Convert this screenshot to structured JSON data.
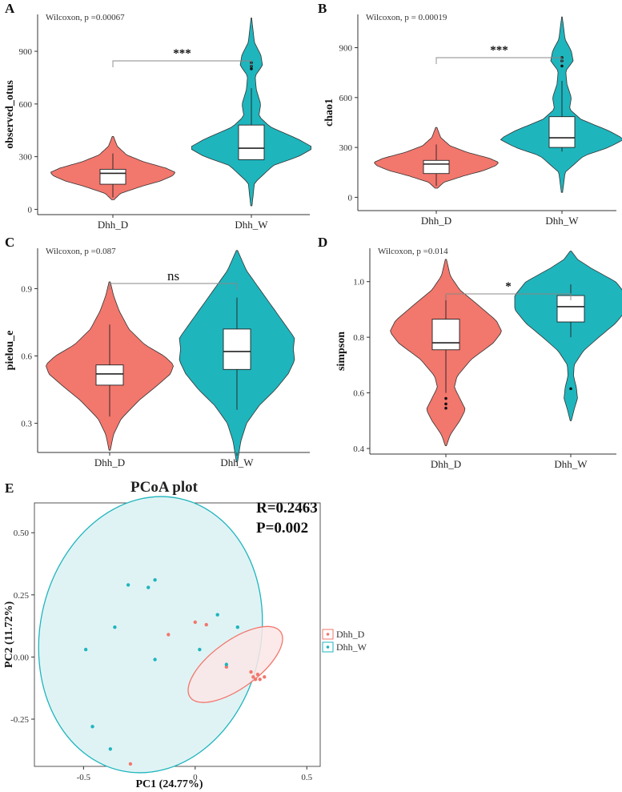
{
  "colors": {
    "Dhh_D": "#f2776d",
    "Dhh_W": "#1fb5bd",
    "ellipse_D_fill": "#fbe6e6",
    "ellipse_W_fill": "#dff3f5"
  },
  "chart_data": [
    {
      "panel": "A",
      "type": "violin",
      "ylabel": "observed_otus",
      "ylim": [
        -30,
        1110
      ],
      "yticks": [
        0,
        300,
        600,
        900
      ],
      "stat_text": "Wilcoxon, p =0.00067",
      "significance": "***",
      "categories": [
        "Dhh_D",
        "Dhh_W"
      ],
      "groups": [
        {
          "name": "Dhh_D",
          "color_key": "Dhh_D",
          "violin_range": [
            55,
            415
          ],
          "density": [
            [
              55,
              0.02
            ],
            [
              90,
              0.12
            ],
            [
              130,
              0.45
            ],
            [
              160,
              0.75
            ],
            [
              190,
              0.95
            ],
            [
              210,
              1.0
            ],
            [
              235,
              0.85
            ],
            [
              270,
              0.5
            ],
            [
              310,
              0.22
            ],
            [
              360,
              0.07
            ],
            [
              415,
              0.01
            ]
          ],
          "box": {
            "q1": 143,
            "median": 205,
            "q3": 228,
            "whisker_low": 68,
            "whisker_high": 318
          },
          "outliers": []
        },
        {
          "name": "Dhh_W",
          "color_key": "Dhh_W",
          "violin_range": [
            20,
            1090
          ],
          "density": [
            [
              20,
              0.01
            ],
            [
              150,
              0.05
            ],
            [
              250,
              0.35
            ],
            [
              300,
              0.75
            ],
            [
              350,
              1.0
            ],
            [
              400,
              0.75
            ],
            [
              470,
              0.3
            ],
            [
              530,
              0.12
            ],
            [
              600,
              0.15
            ],
            [
              680,
              0.08
            ],
            [
              760,
              0.06
            ],
            [
              820,
              0.18
            ],
            [
              880,
              0.15
            ],
            [
              950,
              0.05
            ],
            [
              1040,
              0.02
            ],
            [
              1090,
              0.005
            ]
          ],
          "box": {
            "q1": 283,
            "median": 348,
            "q3": 480,
            "whisker_low": 283,
            "whisker_high": 690
          },
          "outliers": [
            800,
            815,
            835
          ]
        }
      ]
    },
    {
      "panel": "B",
      "type": "violin",
      "ylabel": "chao1",
      "ylim": [
        -80,
        1100
      ],
      "yticks": [
        0,
        300,
        600,
        900
      ],
      "stat_text": "Wilcoxon, p = 0.00019",
      "significance": "***",
      "categories": [
        "Dhh_D",
        "Dhh_W"
      ],
      "groups": [
        {
          "name": "Dhh_D",
          "color_key": "Dhh_D",
          "violin_range": [
            55,
            420
          ],
          "density": [
            [
              55,
              0.02
            ],
            [
              90,
              0.12
            ],
            [
              130,
              0.45
            ],
            [
              160,
              0.75
            ],
            [
              190,
              0.95
            ],
            [
              210,
              1.0
            ],
            [
              235,
              0.85
            ],
            [
              270,
              0.5
            ],
            [
              310,
              0.22
            ],
            [
              360,
              0.07
            ],
            [
              420,
              0.01
            ]
          ],
          "box": {
            "q1": 143,
            "median": 200,
            "q3": 222,
            "whisker_low": 68,
            "whisker_high": 318
          },
          "outliers": []
        },
        {
          "name": "Dhh_W",
          "color_key": "Dhh_W",
          "violin_range": [
            30,
            1085
          ],
          "density": [
            [
              30,
              0.01
            ],
            [
              150,
              0.05
            ],
            [
              250,
              0.35
            ],
            [
              300,
              0.75
            ],
            [
              350,
              1.0
            ],
            [
              400,
              0.75
            ],
            [
              470,
              0.3
            ],
            [
              530,
              0.12
            ],
            [
              600,
              0.15
            ],
            [
              680,
              0.08
            ],
            [
              760,
              0.06
            ],
            [
              820,
              0.18
            ],
            [
              880,
              0.15
            ],
            [
              950,
              0.05
            ],
            [
              1040,
              0.02
            ],
            [
              1085,
              0.005
            ]
          ],
          "box": {
            "q1": 300,
            "median": 358,
            "q3": 485,
            "whisker_low": 275,
            "whisker_high": 700
          },
          "outliers": [
            790,
            820,
            840
          ]
        }
      ]
    },
    {
      "panel": "C",
      "type": "violin",
      "ylabel": "pielou_e",
      "ylim": [
        0.17,
        1.08
      ],
      "yticks": [
        0.3,
        0.6,
        0.9
      ],
      "stat_text": "Wilcoxon, p =0.087",
      "significance": "ns",
      "categories": [
        "Dhh_D",
        "Dhh_W"
      ],
      "groups": [
        {
          "name": "Dhh_D",
          "color_key": "Dhh_D",
          "violin_range": [
            0.18,
            0.93
          ],
          "density": [
            [
              0.18,
              0.01
            ],
            [
              0.25,
              0.06
            ],
            [
              0.32,
              0.18
            ],
            [
              0.4,
              0.45
            ],
            [
              0.47,
              0.75
            ],
            [
              0.52,
              0.95
            ],
            [
              0.56,
              1.0
            ],
            [
              0.6,
              0.85
            ],
            [
              0.65,
              0.55
            ],
            [
              0.72,
              0.3
            ],
            [
              0.8,
              0.15
            ],
            [
              0.87,
              0.06
            ],
            [
              0.93,
              0.01
            ]
          ],
          "box": {
            "q1": 0.47,
            "median": 0.52,
            "q3": 0.56,
            "whisker_low": 0.33,
            "whisker_high": 0.74
          },
          "outliers": []
        },
        {
          "name": "Dhh_W",
          "color_key": "Dhh_W",
          "violin_range": [
            0.13,
            1.07
          ],
          "density": [
            [
              0.13,
              0.01
            ],
            [
              0.22,
              0.06
            ],
            [
              0.3,
              0.15
            ],
            [
              0.38,
              0.35
            ],
            [
              0.45,
              0.6
            ],
            [
              0.52,
              0.8
            ],
            [
              0.58,
              0.9
            ],
            [
              0.63,
              0.88
            ],
            [
              0.68,
              0.9
            ],
            [
              0.74,
              0.75
            ],
            [
              0.82,
              0.55
            ],
            [
              0.9,
              0.35
            ],
            [
              0.98,
              0.15
            ],
            [
              1.07,
              0.01
            ]
          ],
          "box": {
            "q1": 0.54,
            "median": 0.62,
            "q3": 0.72,
            "whisker_low": 0.36,
            "whisker_high": 0.86
          },
          "outliers": []
        }
      ]
    },
    {
      "panel": "D",
      "type": "violin",
      "ylabel": "simpson",
      "ylim": [
        0.38,
        1.12
      ],
      "yticks": [
        0.4,
        0.6,
        0.8,
        1.0
      ],
      "stat_text": "Wilcoxon, p =0.014",
      "significance": "*",
      "categories": [
        "Dhh_D",
        "Dhh_W"
      ],
      "groups": [
        {
          "name": "Dhh_D",
          "color_key": "Dhh_D",
          "violin_range": [
            0.41,
            1.08
          ],
          "density": [
            [
              0.41,
              0.01
            ],
            [
              0.45,
              0.08
            ],
            [
              0.5,
              0.25
            ],
            [
              0.54,
              0.35
            ],
            [
              0.58,
              0.25
            ],
            [
              0.62,
              0.15
            ],
            [
              0.66,
              0.2
            ],
            [
              0.72,
              0.45
            ],
            [
              0.78,
              0.85
            ],
            [
              0.82,
              1.0
            ],
            [
              0.86,
              0.9
            ],
            [
              0.92,
              0.55
            ],
            [
              0.97,
              0.25
            ],
            [
              1.02,
              0.08
            ],
            [
              1.08,
              0.01
            ]
          ],
          "box": {
            "q1": 0.755,
            "median": 0.78,
            "q3": 0.865,
            "whisker_low": 0.6,
            "whisker_high": 0.95
          },
          "outliers": [
            0.545,
            0.56,
            0.58
          ]
        },
        {
          "name": "Dhh_W",
          "color_key": "Dhh_W",
          "violin_range": [
            0.5,
            1.11
          ],
          "density": [
            [
              0.5,
              0.01
            ],
            [
              0.54,
              0.06
            ],
            [
              0.58,
              0.12
            ],
            [
              0.62,
              0.1
            ],
            [
              0.66,
              0.05
            ],
            [
              0.7,
              0.06
            ],
            [
              0.75,
              0.22
            ],
            [
              0.8,
              0.5
            ],
            [
              0.85,
              0.8
            ],
            [
              0.9,
              1.0
            ],
            [
              0.95,
              1.0
            ],
            [
              1.0,
              0.8
            ],
            [
              1.05,
              0.35
            ],
            [
              1.08,
              0.12
            ],
            [
              1.11,
              0.01
            ]
          ],
          "box": {
            "q1": 0.855,
            "median": 0.91,
            "q3": 0.95,
            "whisker_low": 0.8,
            "whisker_high": 0.99
          },
          "outliers": [
            0.615
          ]
        }
      ]
    },
    {
      "panel": "E",
      "type": "scatter",
      "title": "PCoA plot",
      "xlabel": "PC1 (24.77%)",
      "ylabel": "PC2 (11.72%)",
      "xlim": [
        -0.72,
        0.56
      ],
      "ylim": [
        -0.44,
        0.62
      ],
      "xticks": [
        -0.5,
        0.0,
        0.5
      ],
      "yticks": [
        -0.25,
        0.0,
        0.25,
        0.5
      ],
      "tick_labels_x": [
        "-0.5",
        "0",
        "0.5"
      ],
      "tick_labels_y": [
        "-0.25",
        "0.00",
        "0.25",
        "0.50"
      ],
      "stat_lines": [
        "R=0.2463",
        "P=0.002"
      ],
      "legend": {
        "placement": "right",
        "entries": [
          "Dhh_D",
          "Dhh_W"
        ]
      },
      "series": [
        {
          "name": "Dhh_D",
          "color_key": "Dhh_D",
          "points": [
            [
              -0.12,
              0.09
            ],
            [
              0.0,
              0.14
            ],
            [
              0.05,
              0.13
            ],
            [
              0.14,
              -0.04
            ],
            [
              0.25,
              -0.06
            ],
            [
              0.26,
              -0.08
            ],
            [
              0.28,
              -0.07
            ],
            [
              0.29,
              -0.09
            ],
            [
              0.27,
              -0.09
            ],
            [
              0.31,
              -0.08
            ],
            [
              -0.29,
              -0.43
            ]
          ],
          "ellipse": {
            "cx": 0.18,
            "cy": -0.03,
            "rx": 0.25,
            "ry": 0.095,
            "angle_deg": 36
          }
        },
        {
          "name": "Dhh_W",
          "color_key": "Dhh_W",
          "points": [
            [
              -0.3,
              0.29
            ],
            [
              -0.21,
              0.28
            ],
            [
              -0.18,
              0.31
            ],
            [
              -0.36,
              0.12
            ],
            [
              -0.49,
              0.03
            ],
            [
              -0.18,
              -0.01
            ],
            [
              0.02,
              0.03
            ],
            [
              0.1,
              0.17
            ],
            [
              0.19,
              0.12
            ],
            [
              0.14,
              -0.03
            ],
            [
              -0.46,
              -0.28
            ],
            [
              -0.38,
              -0.37
            ]
          ],
          "ellipse": {
            "cx": -0.2,
            "cy": 0.09,
            "rx": 0.495,
            "ry": 0.56,
            "angle_deg": -12
          }
        }
      ]
    }
  ]
}
